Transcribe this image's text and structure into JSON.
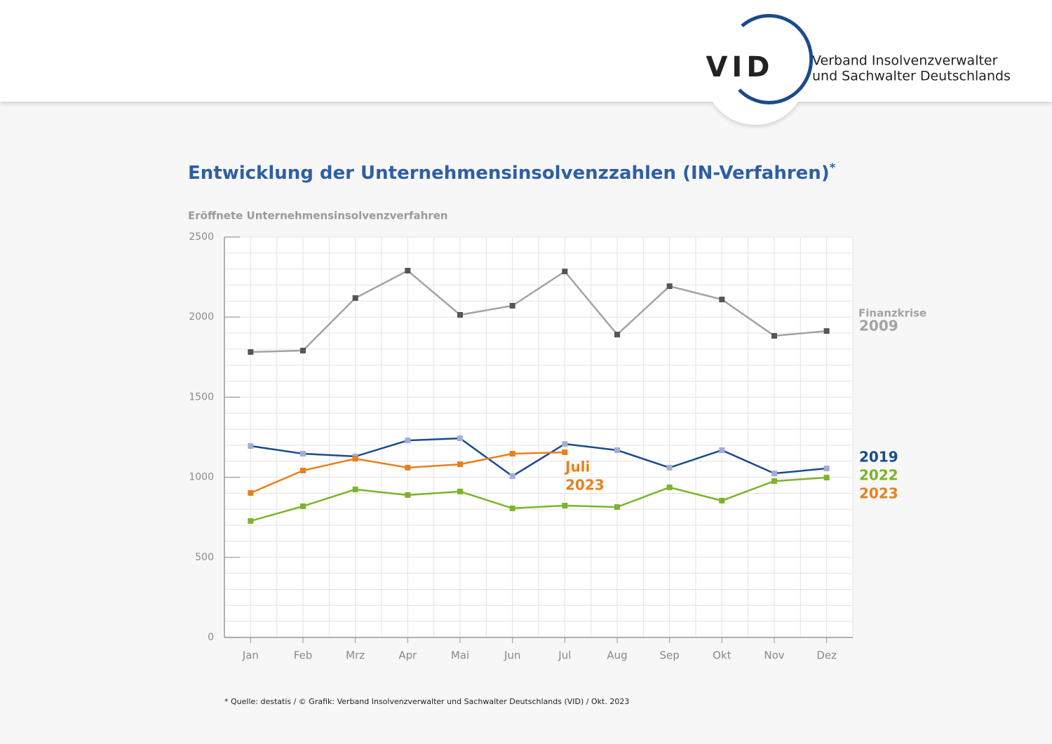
{
  "header": {
    "logo": "VID",
    "org": [
      "Verband Insolvenzverwalter",
      "und Sachwalter Deutschlands"
    ]
  },
  "chart_data": {
    "type": "line",
    "title": "Entwicklung der Unternehmensinsolvenzzahlen (IN-Verfahren)",
    "title_marker": "*",
    "y_label": "Eröffnete Unternehmensinsolvenzverfahren",
    "categories": [
      "Jan",
      "Feb",
      "Mrz",
      "Apr",
      "Mai",
      "Jun",
      "Jul",
      "Aug",
      "Sep",
      "Okt",
      "Nov",
      "Dez"
    ],
    "series": [
      {
        "name": "2009",
        "note": "Finanzkrise",
        "color": "#a3a3a3",
        "marker_color": "#555555",
        "values": [
          1782,
          1791,
          2119,
          2290,
          2014,
          2071,
          2285,
          1891,
          2193,
          2110,
          1883,
          1913
        ]
      },
      {
        "name": "2019",
        "color": "#1b4b8c",
        "marker_color": "#a3acd9",
        "values": [
          1195,
          1147,
          1130,
          1230,
          1243,
          1007,
          1208,
          1169,
          1060,
          1169,
          1024,
          1055
        ]
      },
      {
        "name": "2022",
        "color": "#7ab52a",
        "marker_color": "#7ab52a",
        "values": [
          727,
          819,
          924,
          889,
          911,
          806,
          823,
          814,
          937,
          854,
          976,
          998
        ]
      },
      {
        "name": "2023",
        "color": "#e8801e",
        "marker_color": "#e8801e",
        "values": [
          902,
          1042,
          1116,
          1060,
          1081,
          1147,
          1156,
          null,
          null,
          null,
          null,
          null
        ]
      }
    ],
    "annotation": {
      "lines": [
        "Juli",
        "2023"
      ],
      "color": "#e8801e"
    },
    "ylim": [
      0,
      2500
    ],
    "yticks": [
      0,
      500,
      1000,
      1500,
      2000,
      2500
    ],
    "grid": true,
    "minor_grid_step": 100,
    "footnote": "* Quelle: destatis / © Grafik: Verband Insolvenzverwalter und Sachwalter Deutschlands (VID) / Okt. 2023"
  }
}
